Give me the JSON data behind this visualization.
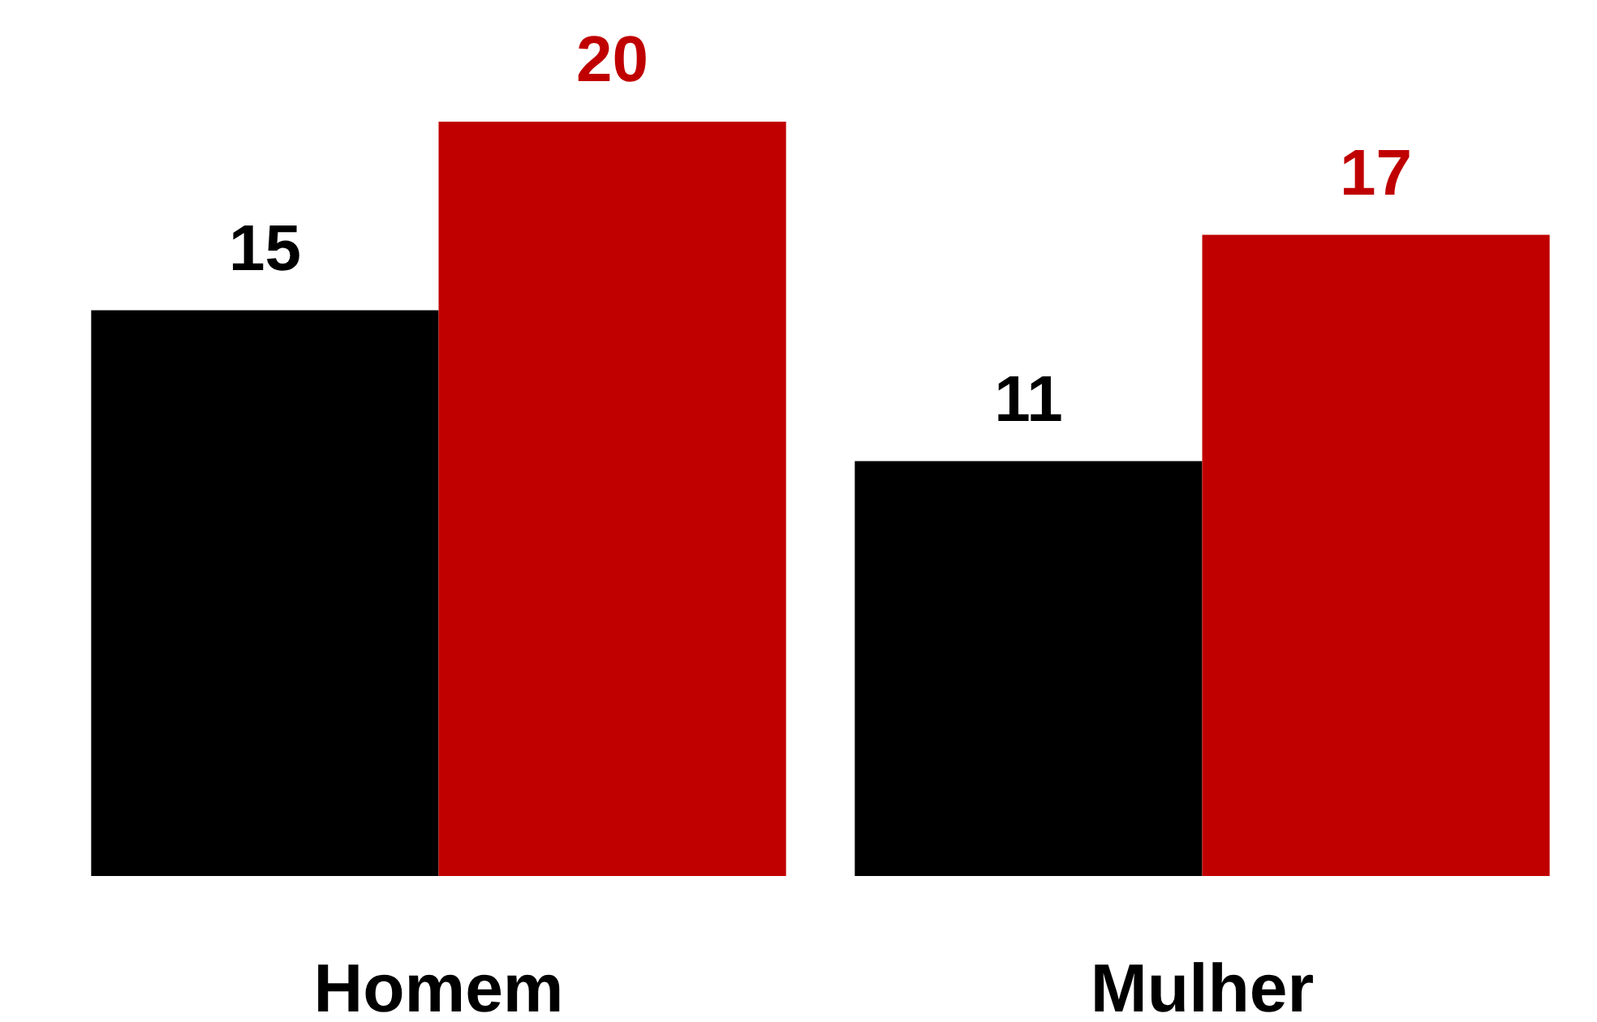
{
  "chart_data": {
    "type": "bar",
    "categories": [
      "Homem",
      "Mulher"
    ],
    "series": [
      {
        "color": "#000000",
        "values": [
          15,
          11
        ]
      },
      {
        "color": "#c00000",
        "values": [
          20,
          17
        ]
      }
    ],
    "data_labels": true
  }
}
